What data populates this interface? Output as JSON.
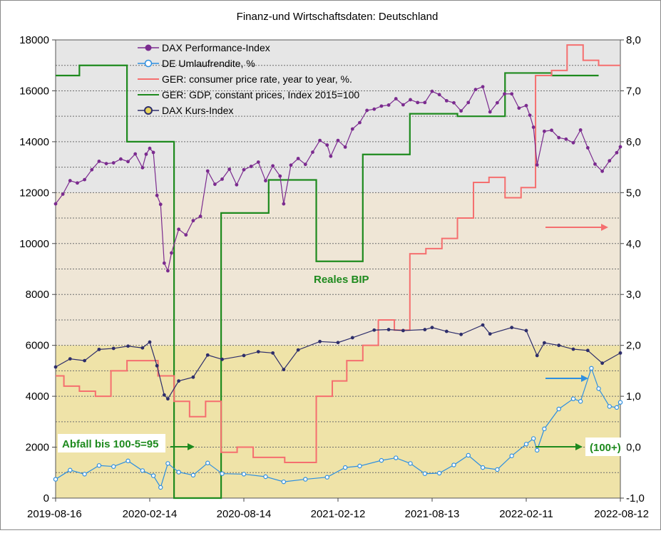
{
  "chart_data": {
    "type": "line",
    "title": "Finanz-und Wirtschaftsdaten:  Deutschland",
    "x_tick_labels": [
      "2019-08-16",
      "2020-02-14",
      "2020-08-14",
      "2021-02-12",
      "2021-08-13",
      "2022-02-11",
      "2022-08-12"
    ],
    "x_range": [
      "2019-08-16",
      "2022-08-12"
    ],
    "y_left_range": [
      0,
      18000
    ],
    "y_left_ticks": [
      "0",
      "2000",
      "4000",
      "6000",
      "8000",
      "10000",
      "12000",
      "14000",
      "16000",
      "18000"
    ],
    "y_right_range": [
      -1.0,
      8.0
    ],
    "y_right_ticks": [
      "-1,0",
      "0,0",
      "1,0",
      "2,0",
      "3,0",
      "4,0",
      "5,0",
      "6,0",
      "7,0",
      "8,0"
    ],
    "legend_placement": "top-left inside plot",
    "grid": "horizontal dashed",
    "background_bands": {
      "upper": "#e6e6e6",
      "middle": "#efe6d6",
      "lower": "#efe3a8"
    },
    "series": [
      {
        "name": "DAX Performance-Index",
        "axis": "left",
        "color": "#7b2b8f",
        "points": [
          [
            "2019-08-16",
            11560
          ],
          [
            "2019-08-30",
            11940
          ],
          [
            "2019-09-13",
            12470
          ],
          [
            "2019-09-27",
            12380
          ],
          [
            "2019-10-11",
            12510
          ],
          [
            "2019-10-25",
            12900
          ],
          [
            "2019-11-08",
            13230
          ],
          [
            "2019-11-22",
            13140
          ],
          [
            "2019-12-06",
            13170
          ],
          [
            "2019-12-20",
            13320
          ],
          [
            "2020-01-03",
            13220
          ],
          [
            "2020-01-17",
            13520
          ],
          [
            "2020-01-31",
            12980
          ],
          [
            "2020-02-07",
            13510
          ],
          [
            "2020-02-14",
            13740
          ],
          [
            "2020-02-21",
            13580
          ],
          [
            "2020-02-28",
            11890
          ],
          [
            "2020-03-06",
            11540
          ],
          [
            "2020-03-13",
            9230
          ],
          [
            "2020-03-20",
            8930
          ],
          [
            "2020-03-27",
            9630
          ],
          [
            "2020-04-10",
            10560
          ],
          [
            "2020-04-24",
            10340
          ],
          [
            "2020-05-08",
            10900
          ],
          [
            "2020-05-22",
            11070
          ],
          [
            "2020-06-05",
            12850
          ],
          [
            "2020-06-19",
            12330
          ],
          [
            "2020-07-03",
            12530
          ],
          [
            "2020-07-17",
            12920
          ],
          [
            "2020-07-31",
            12310
          ],
          [
            "2020-08-14",
            12900
          ],
          [
            "2020-08-28",
            13030
          ],
          [
            "2020-09-11",
            13200
          ],
          [
            "2020-09-25",
            12470
          ],
          [
            "2020-10-09",
            13050
          ],
          [
            "2020-10-23",
            12650
          ],
          [
            "2020-10-30",
            11560
          ],
          [
            "2020-11-13",
            13080
          ],
          [
            "2020-11-27",
            13340
          ],
          [
            "2020-12-11",
            13110
          ],
          [
            "2020-12-25",
            13590
          ],
          [
            "2021-01-08",
            14050
          ],
          [
            "2021-01-22",
            13870
          ],
          [
            "2021-01-29",
            13430
          ],
          [
            "2021-02-12",
            14050
          ],
          [
            "2021-02-26",
            13790
          ],
          [
            "2021-03-12",
            14500
          ],
          [
            "2021-03-26",
            14750
          ],
          [
            "2021-04-09",
            15230
          ],
          [
            "2021-04-23",
            15280
          ],
          [
            "2021-05-07",
            15400
          ],
          [
            "2021-05-21",
            15440
          ],
          [
            "2021-06-04",
            15690
          ],
          [
            "2021-06-18",
            15450
          ],
          [
            "2021-07-02",
            15650
          ],
          [
            "2021-07-16",
            15540
          ],
          [
            "2021-07-30",
            15540
          ],
          [
            "2021-08-13",
            15980
          ],
          [
            "2021-08-27",
            15850
          ],
          [
            "2021-09-10",
            15610
          ],
          [
            "2021-09-24",
            15530
          ],
          [
            "2021-10-08",
            15210
          ],
          [
            "2021-10-22",
            15540
          ],
          [
            "2021-11-05",
            16050
          ],
          [
            "2021-11-19",
            16160
          ],
          [
            "2021-12-03",
            15170
          ],
          [
            "2021-12-17",
            15530
          ],
          [
            "2021-12-31",
            15880
          ],
          [
            "2022-01-14",
            15880
          ],
          [
            "2022-01-28",
            15320
          ],
          [
            "2022-02-11",
            15420
          ],
          [
            "2022-02-18",
            15040
          ],
          [
            "2022-02-25",
            14570
          ],
          [
            "2022-03-04",
            13090
          ],
          [
            "2022-03-18",
            14410
          ],
          [
            "2022-04-01",
            14450
          ],
          [
            "2022-04-15",
            14160
          ],
          [
            "2022-04-29",
            14100
          ],
          [
            "2022-05-13",
            13960
          ],
          [
            "2022-05-27",
            14460
          ],
          [
            "2022-06-10",
            13760
          ],
          [
            "2022-06-24",
            13120
          ],
          [
            "2022-07-08",
            12840
          ],
          [
            "2022-07-22",
            13250
          ],
          [
            "2022-08-05",
            13570
          ],
          [
            "2022-08-12",
            13800
          ]
        ]
      },
      {
        "name": "DE Umlaufrendite, %",
        "axis": "right",
        "color": "#2e8fe0",
        "points": [
          [
            "2019-08-16",
            -0.63
          ],
          [
            "2019-09-13",
            -0.45
          ],
          [
            "2019-10-11",
            -0.53
          ],
          [
            "2019-11-08",
            -0.36
          ],
          [
            "2019-12-06",
            -0.38
          ],
          [
            "2020-01-03",
            -0.27
          ],
          [
            "2020-01-31",
            -0.46
          ],
          [
            "2020-02-21",
            -0.56
          ],
          [
            "2020-03-06",
            -0.79
          ],
          [
            "2020-03-20",
            -0.32
          ],
          [
            "2020-04-10",
            -0.49
          ],
          [
            "2020-05-08",
            -0.55
          ],
          [
            "2020-06-05",
            -0.31
          ],
          [
            "2020-07-03",
            -0.52
          ],
          [
            "2020-08-14",
            -0.53
          ],
          [
            "2020-09-25",
            -0.58
          ],
          [
            "2020-10-30",
            -0.68
          ],
          [
            "2020-12-11",
            -0.63
          ],
          [
            "2021-01-22",
            -0.59
          ],
          [
            "2021-02-26",
            -0.4
          ],
          [
            "2021-03-26",
            -0.37
          ],
          [
            "2021-05-07",
            -0.26
          ],
          [
            "2021-06-04",
            -0.21
          ],
          [
            "2021-07-02",
            -0.32
          ],
          [
            "2021-07-30",
            -0.52
          ],
          [
            "2021-08-27",
            -0.51
          ],
          [
            "2021-09-24",
            -0.35
          ],
          [
            "2021-10-22",
            -0.16
          ],
          [
            "2021-11-19",
            -0.4
          ],
          [
            "2021-12-17",
            -0.44
          ],
          [
            "2022-01-14",
            -0.17
          ],
          [
            "2022-02-11",
            0.06
          ],
          [
            "2022-02-25",
            0.17
          ],
          [
            "2022-03-04",
            -0.06
          ],
          [
            "2022-03-18",
            0.36
          ],
          [
            "2022-04-15",
            0.75
          ],
          [
            "2022-05-13",
            0.95
          ],
          [
            "2022-05-27",
            0.9
          ],
          [
            "2022-06-17",
            1.55
          ],
          [
            "2022-07-01",
            1.15
          ],
          [
            "2022-07-22",
            0.8
          ],
          [
            "2022-08-05",
            0.78
          ],
          [
            "2022-08-12",
            0.88
          ]
        ]
      },
      {
        "name": "GER: consumer price rate, year to year, %.",
        "axis": "right",
        "color": "#f56f6f",
        "steps": [
          [
            "2019-08-16",
            1.4
          ],
          [
            "2019-09-01",
            1.2
          ],
          [
            "2019-10-01",
            1.1
          ],
          [
            "2019-11-01",
            1.0
          ],
          [
            "2019-12-01",
            1.5
          ],
          [
            "2020-01-01",
            1.7
          ],
          [
            "2020-03-01",
            1.4
          ],
          [
            "2020-04-01",
            0.9
          ],
          [
            "2020-05-01",
            0.6
          ],
          [
            "2020-06-01",
            0.9
          ],
          [
            "2020-07-01",
            -0.1
          ],
          [
            "2020-08-01",
            0.0
          ],
          [
            "2020-09-01",
            -0.2
          ],
          [
            "2020-11-01",
            -0.3
          ],
          [
            "2021-01-01",
            1.0
          ],
          [
            "2021-02-01",
            1.3
          ],
          [
            "2021-03-01",
            1.7
          ],
          [
            "2021-04-01",
            2.0
          ],
          [
            "2021-05-01",
            2.5
          ],
          [
            "2021-06-01",
            2.3
          ],
          [
            "2021-07-01",
            3.8
          ],
          [
            "2021-08-01",
            3.9
          ],
          [
            "2021-09-01",
            4.1
          ],
          [
            "2021-10-01",
            4.5
          ],
          [
            "2021-11-01",
            5.2
          ],
          [
            "2021-12-01",
            5.3
          ],
          [
            "2022-01-01",
            4.9
          ],
          [
            "2022-02-01",
            5.1
          ],
          [
            "2022-03-01",
            7.3
          ],
          [
            "2022-04-01",
            7.4
          ],
          [
            "2022-05-01",
            7.9
          ],
          [
            "2022-06-01",
            7.6
          ],
          [
            "2022-07-01",
            7.5
          ],
          [
            "2022-08-12",
            7.5
          ]
        ]
      },
      {
        "name": "GER: GDP, constant prices, Index 2015=100",
        "axis": "right",
        "color": "#1e8a1e",
        "steps": [
          [
            "2019-08-16",
            7.3
          ],
          [
            "2019-10-01",
            7.5
          ],
          [
            "2020-01-01",
            6.0
          ],
          [
            "2020-04-01",
            -1.0
          ],
          [
            "2020-07-01",
            4.6
          ],
          [
            "2020-10-01",
            5.25
          ],
          [
            "2021-01-01",
            3.65
          ],
          [
            "2021-04-01",
            5.75
          ],
          [
            "2021-07-01",
            6.55
          ],
          [
            "2021-10-01",
            6.5
          ],
          [
            "2022-01-01",
            7.35
          ],
          [
            "2022-04-01",
            7.3
          ],
          [
            "2022-07-01",
            7.3
          ]
        ]
      },
      {
        "name": "DAX Kurs-Index",
        "axis": "left",
        "color": "#2d2d6b",
        "points": [
          [
            "2019-08-16",
            5150
          ],
          [
            "2019-09-13",
            5470
          ],
          [
            "2019-10-11",
            5400
          ],
          [
            "2019-11-08",
            5840
          ],
          [
            "2019-12-06",
            5880
          ],
          [
            "2020-01-03",
            5970
          ],
          [
            "2020-01-31",
            5900
          ],
          [
            "2020-02-14",
            6130
          ],
          [
            "2020-02-28",
            5200
          ],
          [
            "2020-03-13",
            4050
          ],
          [
            "2020-03-20",
            3900
          ],
          [
            "2020-04-10",
            4600
          ],
          [
            "2020-05-08",
            4750
          ],
          [
            "2020-06-05",
            5620
          ],
          [
            "2020-07-03",
            5450
          ],
          [
            "2020-08-14",
            5600
          ],
          [
            "2020-09-11",
            5750
          ],
          [
            "2020-10-09",
            5700
          ],
          [
            "2020-10-30",
            5050
          ],
          [
            "2020-11-27",
            5820
          ],
          [
            "2021-01-08",
            6150
          ],
          [
            "2021-02-12",
            6110
          ],
          [
            "2021-03-12",
            6300
          ],
          [
            "2021-04-23",
            6600
          ],
          [
            "2021-05-21",
            6620
          ],
          [
            "2021-06-18",
            6580
          ],
          [
            "2021-07-30",
            6620
          ],
          [
            "2021-08-13",
            6700
          ],
          [
            "2021-09-10",
            6550
          ],
          [
            "2021-10-08",
            6430
          ],
          [
            "2021-11-19",
            6800
          ],
          [
            "2021-12-03",
            6450
          ],
          [
            "2022-01-14",
            6700
          ],
          [
            "2022-02-11",
            6580
          ],
          [
            "2022-03-04",
            5600
          ],
          [
            "2022-03-18",
            6100
          ],
          [
            "2022-04-15",
            6000
          ],
          [
            "2022-05-13",
            5850
          ],
          [
            "2022-06-10",
            5800
          ],
          [
            "2022-07-08",
            5300
          ],
          [
            "2022-08-12",
            5700
          ]
        ]
      }
    ],
    "annotations": [
      {
        "text": "Reales BIP",
        "color": "#1e8a1e"
      },
      {
        "text": "Abfall bis 100-5=95",
        "color": "#1e8a1e"
      },
      {
        "text": "(100+)",
        "color": "#1e8a1e"
      }
    ]
  }
}
